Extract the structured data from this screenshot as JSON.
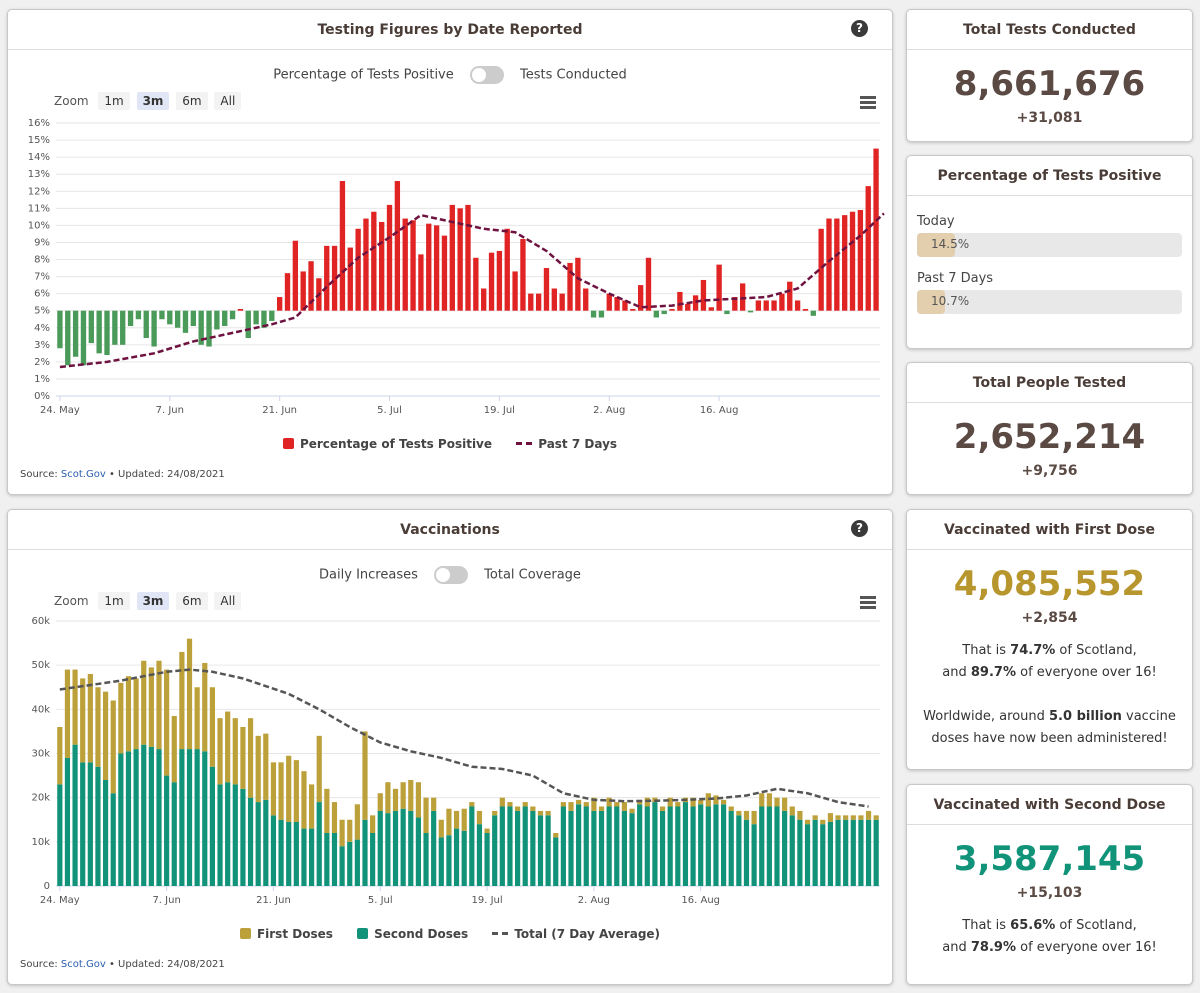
{
  "testing": {
    "title": "Testing Figures by Date Reported",
    "help": "?",
    "toggle_left": "Percentage of Tests Positive",
    "toggle_right": "Tests Conducted",
    "zoom_label": "Zoom",
    "zoom_options": [
      "1m",
      "3m",
      "6m",
      "All"
    ],
    "source_prefix": "Source:",
    "source_link": "Scot.Gov",
    "source_suffix": "• Updated: 24/08/2021",
    "legend": [
      "Percentage of Tests Positive",
      "Past 7 Days"
    ]
  },
  "vaccinations": {
    "title": "Vaccinations",
    "help": "?",
    "toggle_left": "Daily Increases",
    "toggle_right": "Total Coverage",
    "zoom_label": "Zoom",
    "zoom_options": [
      "1m",
      "3m",
      "6m",
      "All"
    ],
    "source_prefix": "Source:",
    "source_link": "Scot.Gov",
    "source_suffix": "• Updated: 24/08/2021",
    "legend": [
      "First Doses",
      "Second Doses",
      "Total (7 Day Average)"
    ]
  },
  "cards": {
    "total_tests": {
      "title": "Total Tests Conducted",
      "value": "8,661,676",
      "delta": "+31,081"
    },
    "percent_positive": {
      "title": "Percentage of Tests Positive",
      "today_label": "Today",
      "today_value": "14.5%",
      "today_fraction": 0.145,
      "week_label": "Past 7 Days",
      "week_value": "10.7%",
      "week_fraction": 0.107
    },
    "people_tested": {
      "title": "Total People Tested",
      "value": "2,652,214",
      "delta": "+9,756"
    },
    "first_dose": {
      "title": "Vaccinated with First Dose",
      "value": "4,085,552",
      "delta": "+2,854",
      "n1a": "That is ",
      "n1b": "74.7%",
      "n1c": " of Scotland,",
      "n2a": "and ",
      "n2b": "89.7%",
      "n2c": " of everyone over 16!",
      "n3a": "Worldwide, around ",
      "n3b": "5.0 billion",
      "n3c": " vaccine",
      "n4": "doses have now been administered!"
    },
    "second_dose": {
      "title": "Vaccinated with Second Dose",
      "value": "3,587,145",
      "delta": "+15,103",
      "n1a": "That is ",
      "n1b": "65.6%",
      "n1c": " of Scotland,",
      "n2a": "and ",
      "n2b": "78.9%",
      "n2c": " of everyone over 16!"
    }
  },
  "colors": {
    "positive_high": "#e02424",
    "positive_low": "#4a9a5a",
    "avg_line_testing": "#6e1240",
    "first_dose": "#bca03a",
    "second_dose": "#11937a",
    "avg_line_vacc": "#555555",
    "first_value_text": "#b8962e",
    "second_value_text": "#11937a"
  },
  "chart_data": [
    {
      "type": "bar",
      "baseline": 5,
      "x_ticks": [
        "24. May",
        "7. Jun",
        "21. Jun",
        "5. Jul",
        "19. Jul",
        "2. Aug",
        "16. Aug"
      ],
      "y_ticks": [
        "0%",
        "1%",
        "2%",
        "3%",
        "4%",
        "5%",
        "6%",
        "7%",
        "8%",
        "9%",
        "10%",
        "11%",
        "12%",
        "13%",
        "14%",
        "15%",
        "16%"
      ],
      "ylim": [
        0,
        16
      ],
      "series": [
        {
          "name": "Percentage of Tests Positive",
          "values": [
            2.8,
            1.8,
            2.3,
            1.8,
            3.1,
            2.5,
            2.4,
            3.0,
            3.0,
            4.1,
            4.5,
            3.4,
            2.9,
            4.5,
            4.2,
            4.0,
            3.7,
            4.1,
            3.0,
            2.9,
            3.9,
            4.1,
            4.5,
            5.1,
            3.4,
            4.2,
            4.0,
            4.4,
            5.8,
            7.2,
            9.1,
            7.3,
            7.9,
            6.9,
            8.8,
            8.8,
            12.6,
            8.7,
            9.8,
            10.4,
            10.8,
            10.2,
            11.2,
            12.6,
            10.4,
            10.3,
            8.3,
            10.1,
            10.0,
            9.4,
            11.2,
            11.0,
            11.2,
            8.1,
            6.3,
            8.4,
            8.5,
            9.8,
            7.3,
            9.2,
            6.0,
            6.0,
            7.5,
            6.3,
            6.0,
            7.8,
            8.1,
            6.3,
            4.6,
            4.6,
            6.0,
            5.8,
            5.6,
            5.1,
            6.5,
            8.1,
            4.6,
            4.8,
            5.1,
            6.1,
            5.4,
            5.9,
            6.8,
            5.2,
            7.7,
            4.8,
            5.8,
            6.6,
            4.9,
            5.6,
            5.6,
            5.6,
            6.0,
            6.7,
            5.6,
            5.1,
            4.7,
            9.8,
            10.4,
            10.4,
            10.6,
            10.8,
            10.9,
            12.3,
            14.5
          ],
          "unit": "%"
        },
        {
          "name": "Past 7 Days",
          "points": [
            [
              0,
              1.7
            ],
            [
              6,
              2.0
            ],
            [
              12,
              2.5
            ],
            [
              17,
              3.2
            ],
            [
              22,
              3.7
            ],
            [
              27,
              4.2
            ],
            [
              30,
              4.6
            ],
            [
              34,
              6.4
            ],
            [
              38,
              8.1
            ],
            [
              42,
              9.3
            ],
            [
              46,
              10.6
            ],
            [
              50,
              10.2
            ],
            [
              54,
              9.8
            ],
            [
              58,
              9.6
            ],
            [
              62,
              8.5
            ],
            [
              66,
              6.9
            ],
            [
              70,
              6.0
            ],
            [
              74,
              5.2
            ],
            [
              78,
              5.3
            ],
            [
              82,
              5.6
            ],
            [
              86,
              5.7
            ],
            [
              90,
              5.8
            ],
            [
              94,
              6.3
            ],
            [
              98,
              7.9
            ],
            [
              102,
              9.4
            ],
            [
              105,
              10.7
            ]
          ]
        }
      ]
    },
    {
      "type": "bar",
      "stacked": true,
      "x_ticks": [
        "24. May",
        "7. Jun",
        "21. Jun",
        "5. Jul",
        "19. Jul",
        "2. Aug",
        "16. Aug"
      ],
      "y_ticks": [
        "0",
        "10k",
        "20k",
        "30k",
        "40k",
        "50k",
        "60k"
      ],
      "ylim": [
        0,
        60000
      ],
      "series": [
        {
          "name": "First Doses",
          "values": [
            13000,
            20000,
            17000,
            19000,
            20000,
            18000,
            20000,
            21000,
            16000,
            17000,
            16000,
            19000,
            18000,
            20000,
            24000,
            15000,
            22000,
            25000,
            14000,
            20000,
            18000,
            15000,
            16000,
            15000,
            14000,
            18000,
            15000,
            15000,
            12000,
            13000,
            15000,
            14000,
            13000,
            10000,
            15000,
            10000,
            7000,
            6000,
            5000,
            8000,
            20000,
            4000,
            4000,
            7000,
            5000,
            6000,
            7000,
            8000,
            8000,
            3000,
            4000,
            6000,
            4000,
            5000,
            1000,
            3000,
            1000,
            1000,
            2000,
            1000,
            1000,
            1000,
            1000,
            1000,
            1000,
            1000,
            1000,
            2000,
            1000,
            1000,
            3000,
            1000,
            2000,
            1000,
            2000,
            1000,
            1000,
            2000,
            1000,
            1000,
            2000,
            1000,
            1000,
            2000,
            1000,
            3000,
            2000,
            1000,
            1000,
            1000,
            2000,
            3000,
            3000,
            3000,
            2000,
            3000,
            2000,
            2000,
            1000,
            1000,
            1000,
            2000,
            1000,
            1000,
            1000,
            1000,
            2000,
            1000
          ],
          "stack": "doses"
        },
        {
          "name": "Second Doses",
          "values": [
            23000,
            29000,
            32000,
            28000,
            28000,
            27000,
            24000,
            21000,
            30000,
            30500,
            31000,
            32000,
            31500,
            31000,
            25000,
            23500,
            31000,
            31000,
            31000,
            30500,
            27000,
            23000,
            23500,
            23000,
            22000,
            20000,
            19000,
            19500,
            16000,
            15000,
            14500,
            14500,
            13000,
            13000,
            19000,
            12000,
            12000,
            9000,
            10000,
            10500,
            15000,
            12000,
            17000,
            16500,
            17000,
            17500,
            17000,
            15500,
            12000,
            17000,
            11000,
            11500,
            13000,
            12500,
            18000,
            14000,
            12000,
            16000,
            18000,
            18000,
            17000,
            18000,
            17000,
            16000,
            16000,
            11000,
            18000,
            17000,
            18500,
            18000,
            17000,
            17000,
            18000,
            18000,
            17000,
            16500,
            18500,
            18000,
            19000,
            17000,
            18000,
            18000,
            19000,
            18000,
            18500,
            18000,
            18500,
            18500,
            17000,
            16000,
            15000,
            14000,
            18000,
            18000,
            18000,
            17000,
            16000,
            15000,
            14000,
            15000,
            14000,
            14500,
            15000,
            15000,
            15000,
            15000,
            15000,
            15000
          ],
          "stack": "doses"
        },
        {
          "name": "Total (7 Day Average)",
          "points": [
            [
              0,
              44500
            ],
            [
              8,
              46500
            ],
            [
              14,
              48500
            ],
            [
              17,
              49000
            ],
            [
              20,
              48500
            ],
            [
              24,
              47000
            ],
            [
              30,
              43500
            ],
            [
              34,
              40000
            ],
            [
              38,
              36000
            ],
            [
              42,
              32500
            ],
            [
              46,
              30500
            ],
            [
              50,
              29000
            ],
            [
              54,
              27000
            ],
            [
              58,
              26500
            ],
            [
              62,
              25000
            ],
            [
              66,
              21000
            ],
            [
              70,
              19500
            ],
            [
              74,
              19200
            ],
            [
              78,
              19300
            ],
            [
              82,
              19500
            ],
            [
              86,
              19800
            ],
            [
              90,
              20500
            ],
            [
              94,
              22000
            ],
            [
              98,
              21000
            ],
            [
              102,
              19000
            ],
            [
              106,
              18000
            ]
          ]
        }
      ]
    }
  ]
}
